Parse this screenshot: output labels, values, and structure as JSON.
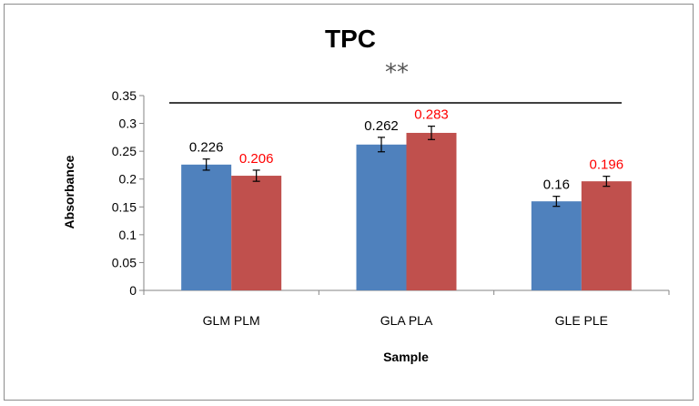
{
  "chart_data": {
    "type": "bar",
    "title": "TPC",
    "annotation": "**",
    "xlabel": "Sample",
    "ylabel": "Absorbance",
    "categories": [
      "GLM PLM",
      "GLA PLA",
      "GLE PLE"
    ],
    "ylim": [
      0,
      0.35
    ],
    "yticks": [
      "0",
      "0.05",
      "0.1",
      "0.15",
      "0.2",
      "0.25",
      "0.3",
      "0.35"
    ],
    "series": [
      {
        "color": "#4f81bd",
        "label_color": "#000000",
        "values": [
          0.226,
          0.262,
          0.16
        ],
        "errors": [
          0.01,
          0.013,
          0.009
        ]
      },
      {
        "color": "#c0504d",
        "label_color": "#ff0000",
        "values": [
          0.206,
          0.283,
          0.196
        ],
        "errors": [
          0.01,
          0.012,
          0.009
        ]
      }
    ],
    "significance_line_value": 0.337,
    "grid": false,
    "legend": "none"
  }
}
